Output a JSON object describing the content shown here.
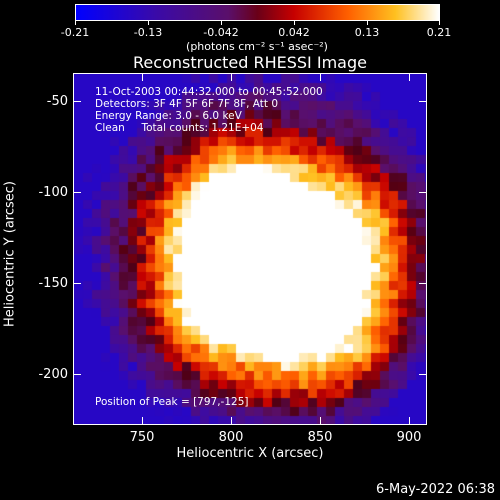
{
  "colorbar": {
    "ticks": [
      "-0.21",
      "-0.13",
      "-0.042",
      "0.042",
      "0.13",
      "0.21"
    ],
    "units": "(photons cm⁻² s⁻¹ asec⁻²)",
    "range": [
      -0.21,
      0.21
    ]
  },
  "plot": {
    "title": "Reconstructed RHESSI Image",
    "info_lines": [
      "11-Oct-2003 00:44:32.000 to 00:45:52.000",
      "Detectors: 3F 4F 5F 6F 7F 8F, Att 0",
      "Energy Range: 3.0 - 6.0 keV",
      "Clean     Total counts: 1.21E+04"
    ],
    "peak_text": "Position of Peak = [797,-125]",
    "xlabel": "Heliocentric X (arcsec)",
    "ylabel": "Heliocentric Y (arcsec)",
    "xticks": [
      "750",
      "800",
      "850",
      "900"
    ],
    "yticks": [
      "-50",
      "-100",
      "-150",
      "-200"
    ],
    "xlim": [
      716,
      909
    ],
    "ylim": [
      -226,
      -34
    ]
  },
  "footer": {
    "timestamp": "6-May-2022 06:38"
  }
}
